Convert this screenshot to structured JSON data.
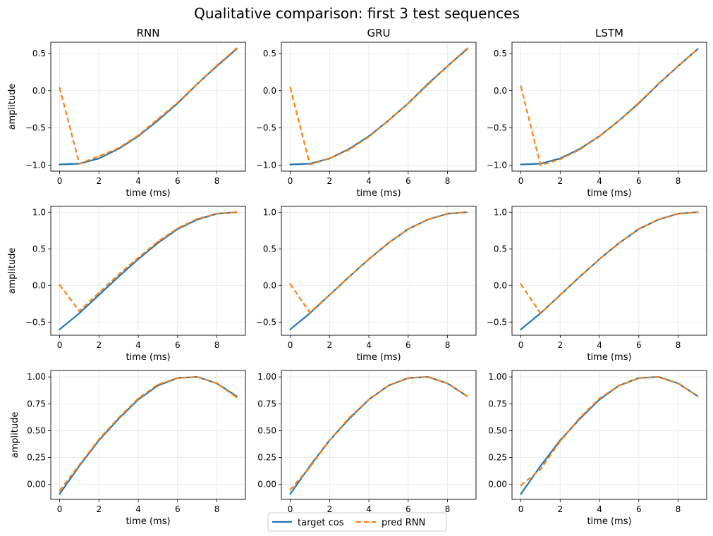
{
  "figure": {
    "suptitle": "Qualitative comparison: first 3 test sequences",
    "legend": {
      "placement": "bottom-center",
      "items": [
        {
          "label": "target cos",
          "color": "#1f77b4",
          "style": "solid"
        },
        {
          "label": "pred RNN",
          "color": "#ff7f0e",
          "style": "dashed"
        }
      ]
    }
  },
  "colors": {
    "target": "#1f77b4",
    "pred": "#ff7f0e",
    "grid": "#e6e6e6"
  },
  "chart_data": [
    {
      "type": "line",
      "row": 0,
      "col": 0,
      "title": "RNN",
      "xlabel": "time (ms)",
      "ylabel": "amplitude",
      "xlim": [
        -0.45,
        9.45
      ],
      "ylim": [
        -1.08,
        0.65
      ],
      "xticks": [
        0,
        2,
        4,
        6,
        8
      ],
      "xtick_labels": [
        "0",
        "2",
        "4",
        "6",
        "8"
      ],
      "yticks": [
        -1.0,
        -0.5,
        0.0,
        0.5
      ],
      "ytick_labels": [
        "−1.0",
        "−0.5",
        "0.0",
        "0.5"
      ],
      "grid": true,
      "x": [
        0,
        1,
        2,
        3,
        4,
        5,
        6,
        7,
        8,
        9
      ],
      "series": [
        {
          "name": "target cos",
          "values": [
            -0.99,
            -0.98,
            -0.91,
            -0.78,
            -0.61,
            -0.4,
            -0.17,
            0.09,
            0.33,
            0.56
          ]
        },
        {
          "name": "pred RNN",
          "values": [
            0.04,
            -0.98,
            -0.88,
            -0.77,
            -0.6,
            -0.38,
            -0.16,
            0.09,
            0.34,
            0.57
          ]
        }
      ]
    },
    {
      "type": "line",
      "row": 0,
      "col": 1,
      "title": "GRU",
      "xlabel": "time (ms)",
      "ylabel": "",
      "xlim": [
        -0.45,
        9.45
      ],
      "ylim": [
        -1.08,
        0.65
      ],
      "xticks": [
        0,
        2,
        4,
        6,
        8
      ],
      "xtick_labels": [
        "0",
        "2",
        "4",
        "6",
        "8"
      ],
      "yticks": [
        -1.0,
        -0.5,
        0.0,
        0.5
      ],
      "ytick_labels": [
        "−1.0",
        "−0.5",
        "0.0",
        "0.5"
      ],
      "grid": true,
      "x": [
        0,
        1,
        2,
        3,
        4,
        5,
        6,
        7,
        8,
        9
      ],
      "series": [
        {
          "name": "target cos",
          "values": [
            -0.99,
            -0.98,
            -0.91,
            -0.78,
            -0.61,
            -0.4,
            -0.17,
            0.09,
            0.33,
            0.56
          ]
        },
        {
          "name": "pred RNN",
          "values": [
            0.04,
            -0.99,
            -0.91,
            -0.79,
            -0.62,
            -0.4,
            -0.17,
            0.08,
            0.33,
            0.57
          ]
        }
      ]
    },
    {
      "type": "line",
      "row": 0,
      "col": 2,
      "title": "LSTM",
      "xlabel": "time (ms)",
      "ylabel": "",
      "xlim": [
        -0.45,
        9.45
      ],
      "ylim": [
        -1.08,
        0.65
      ],
      "xticks": [
        0,
        2,
        4,
        6,
        8
      ],
      "xtick_labels": [
        "0",
        "2",
        "4",
        "6",
        "8"
      ],
      "yticks": [
        -1.0,
        -0.5,
        0.0,
        0.5
      ],
      "ytick_labels": [
        "−1.0",
        "−0.5",
        "0.0",
        "0.5"
      ],
      "grid": true,
      "x": [
        0,
        1,
        2,
        3,
        4,
        5,
        6,
        7,
        8,
        9
      ],
      "series": [
        {
          "name": "target cos",
          "values": [
            -0.99,
            -0.98,
            -0.91,
            -0.78,
            -0.61,
            -0.4,
            -0.17,
            0.09,
            0.33,
            0.56
          ]
        },
        {
          "name": "pred RNN",
          "values": [
            0.06,
            -1.0,
            -0.92,
            -0.79,
            -0.61,
            -0.4,
            -0.16,
            0.09,
            0.33,
            0.56
          ]
        }
      ]
    },
    {
      "type": "line",
      "row": 1,
      "col": 0,
      "title": "",
      "xlabel": "time (ms)",
      "ylabel": "amplitude",
      "xlim": [
        -0.45,
        9.45
      ],
      "ylim": [
        -0.68,
        1.08
      ],
      "xticks": [
        0,
        2,
        4,
        6,
        8
      ],
      "xtick_labels": [
        "0",
        "2",
        "4",
        "6",
        "8"
      ],
      "yticks": [
        -0.5,
        0.0,
        0.5,
        1.0
      ],
      "ytick_labels": [
        "−0.5",
        "0.0",
        "0.5",
        "1.0"
      ],
      "grid": true,
      "x": [
        0,
        1,
        2,
        3,
        4,
        5,
        6,
        7,
        8,
        9
      ],
      "series": [
        {
          "name": "target cos",
          "values": [
            -0.6,
            -0.38,
            -0.13,
            0.12,
            0.36,
            0.58,
            0.77,
            0.9,
            0.98,
            1.0
          ]
        },
        {
          "name": "pred RNN",
          "values": [
            0.01,
            -0.35,
            -0.1,
            0.15,
            0.38,
            0.6,
            0.78,
            0.91,
            0.98,
            1.0
          ]
        }
      ]
    },
    {
      "type": "line",
      "row": 1,
      "col": 1,
      "title": "",
      "xlabel": "time (ms)",
      "ylabel": "",
      "xlim": [
        -0.45,
        9.45
      ],
      "ylim": [
        -0.68,
        1.08
      ],
      "xticks": [
        0,
        2,
        4,
        6,
        8
      ],
      "xtick_labels": [
        "0",
        "2",
        "4",
        "6",
        "8"
      ],
      "yticks": [
        -0.5,
        0.0,
        0.5,
        1.0
      ],
      "ytick_labels": [
        "−0.5",
        "0.0",
        "0.5",
        "1.0"
      ],
      "grid": true,
      "x": [
        0,
        1,
        2,
        3,
        4,
        5,
        6,
        7,
        8,
        9
      ],
      "series": [
        {
          "name": "target cos",
          "values": [
            -0.6,
            -0.38,
            -0.13,
            0.12,
            0.36,
            0.58,
            0.77,
            0.9,
            0.98,
            1.0
          ]
        },
        {
          "name": "pred RNN",
          "values": [
            0.02,
            -0.37,
            -0.13,
            0.12,
            0.36,
            0.58,
            0.77,
            0.9,
            0.98,
            1.0
          ]
        }
      ]
    },
    {
      "type": "line",
      "row": 1,
      "col": 2,
      "title": "",
      "xlabel": "time (ms)",
      "ylabel": "",
      "xlim": [
        -0.45,
        9.45
      ],
      "ylim": [
        -0.68,
        1.08
      ],
      "xticks": [
        0,
        2,
        4,
        6,
        8
      ],
      "xtick_labels": [
        "0",
        "2",
        "4",
        "6",
        "8"
      ],
      "yticks": [
        -0.5,
        0.0,
        0.5,
        1.0
      ],
      "ytick_labels": [
        "−0.5",
        "0.0",
        "0.5",
        "1.0"
      ],
      "grid": true,
      "x": [
        0,
        1,
        2,
        3,
        4,
        5,
        6,
        7,
        8,
        9
      ],
      "series": [
        {
          "name": "target cos",
          "values": [
            -0.6,
            -0.38,
            -0.13,
            0.12,
            0.36,
            0.58,
            0.77,
            0.9,
            0.98,
            1.0
          ]
        },
        {
          "name": "pred RNN",
          "values": [
            0.02,
            -0.38,
            -0.13,
            0.12,
            0.36,
            0.58,
            0.77,
            0.9,
            0.98,
            1.0
          ]
        }
      ]
    },
    {
      "type": "line",
      "row": 2,
      "col": 0,
      "title": "",
      "xlabel": "time (ms)",
      "ylabel": "amplitude",
      "xlim": [
        -0.45,
        9.45
      ],
      "ylim": [
        -0.14,
        1.06
      ],
      "xticks": [
        0,
        2,
        4,
        6,
        8
      ],
      "xtick_labels": [
        "0",
        "2",
        "4",
        "6",
        "8"
      ],
      "yticks": [
        0.0,
        0.25,
        0.5,
        0.75,
        1.0
      ],
      "ytick_labels": [
        "0.00",
        "0.25",
        "0.50",
        "0.75",
        "1.00"
      ],
      "grid": true,
      "x": [
        0,
        1,
        2,
        3,
        4,
        5,
        6,
        7,
        8,
        9
      ],
      "series": [
        {
          "name": "target cos",
          "values": [
            -0.09,
            0.17,
            0.41,
            0.61,
            0.79,
            0.92,
            0.99,
            1.0,
            0.94,
            0.82
          ]
        },
        {
          "name": "pred RNN",
          "values": [
            -0.06,
            0.18,
            0.42,
            0.62,
            0.8,
            0.93,
            0.99,
            1.0,
            0.94,
            0.81
          ]
        }
      ]
    },
    {
      "type": "line",
      "row": 2,
      "col": 1,
      "title": "",
      "xlabel": "time (ms)",
      "ylabel": "",
      "xlim": [
        -0.45,
        9.45
      ],
      "ylim": [
        -0.14,
        1.06
      ],
      "xticks": [
        0,
        2,
        4,
        6,
        8
      ],
      "xtick_labels": [
        "0",
        "2",
        "4",
        "6",
        "8"
      ],
      "yticks": [
        0.0,
        0.25,
        0.5,
        0.75,
        1.0
      ],
      "ytick_labels": [
        "0.00",
        "0.25",
        "0.50",
        "0.75",
        "1.00"
      ],
      "grid": true,
      "x": [
        0,
        1,
        2,
        3,
        4,
        5,
        6,
        7,
        8,
        9
      ],
      "series": [
        {
          "name": "target cos",
          "values": [
            -0.09,
            0.17,
            0.41,
            0.61,
            0.79,
            0.92,
            0.99,
            1.0,
            0.94,
            0.82
          ]
        },
        {
          "name": "pred RNN",
          "values": [
            -0.05,
            0.16,
            0.41,
            0.62,
            0.79,
            0.92,
            0.99,
            1.0,
            0.94,
            0.82
          ]
        }
      ]
    },
    {
      "type": "line",
      "row": 2,
      "col": 2,
      "title": "",
      "xlabel": "time (ms)",
      "ylabel": "",
      "xlim": [
        -0.45,
        9.45
      ],
      "ylim": [
        -0.14,
        1.06
      ],
      "xticks": [
        0,
        2,
        4,
        6,
        8
      ],
      "xtick_labels": [
        "0",
        "2",
        "4",
        "6",
        "8"
      ],
      "yticks": [
        0.0,
        0.25,
        0.5,
        0.75,
        1.0
      ],
      "ytick_labels": [
        "0.00",
        "0.25",
        "0.50",
        "0.75",
        "1.00"
      ],
      "grid": true,
      "x": [
        0,
        1,
        2,
        3,
        4,
        5,
        6,
        7,
        8,
        9
      ],
      "series": [
        {
          "name": "target cos",
          "values": [
            -0.09,
            0.17,
            0.41,
            0.61,
            0.79,
            0.92,
            0.99,
            1.0,
            0.94,
            0.82
          ]
        },
        {
          "name": "pred RNN",
          "values": [
            -0.01,
            0.14,
            0.4,
            0.62,
            0.8,
            0.92,
            0.99,
            1.0,
            0.94,
            0.82
          ]
        }
      ]
    }
  ]
}
